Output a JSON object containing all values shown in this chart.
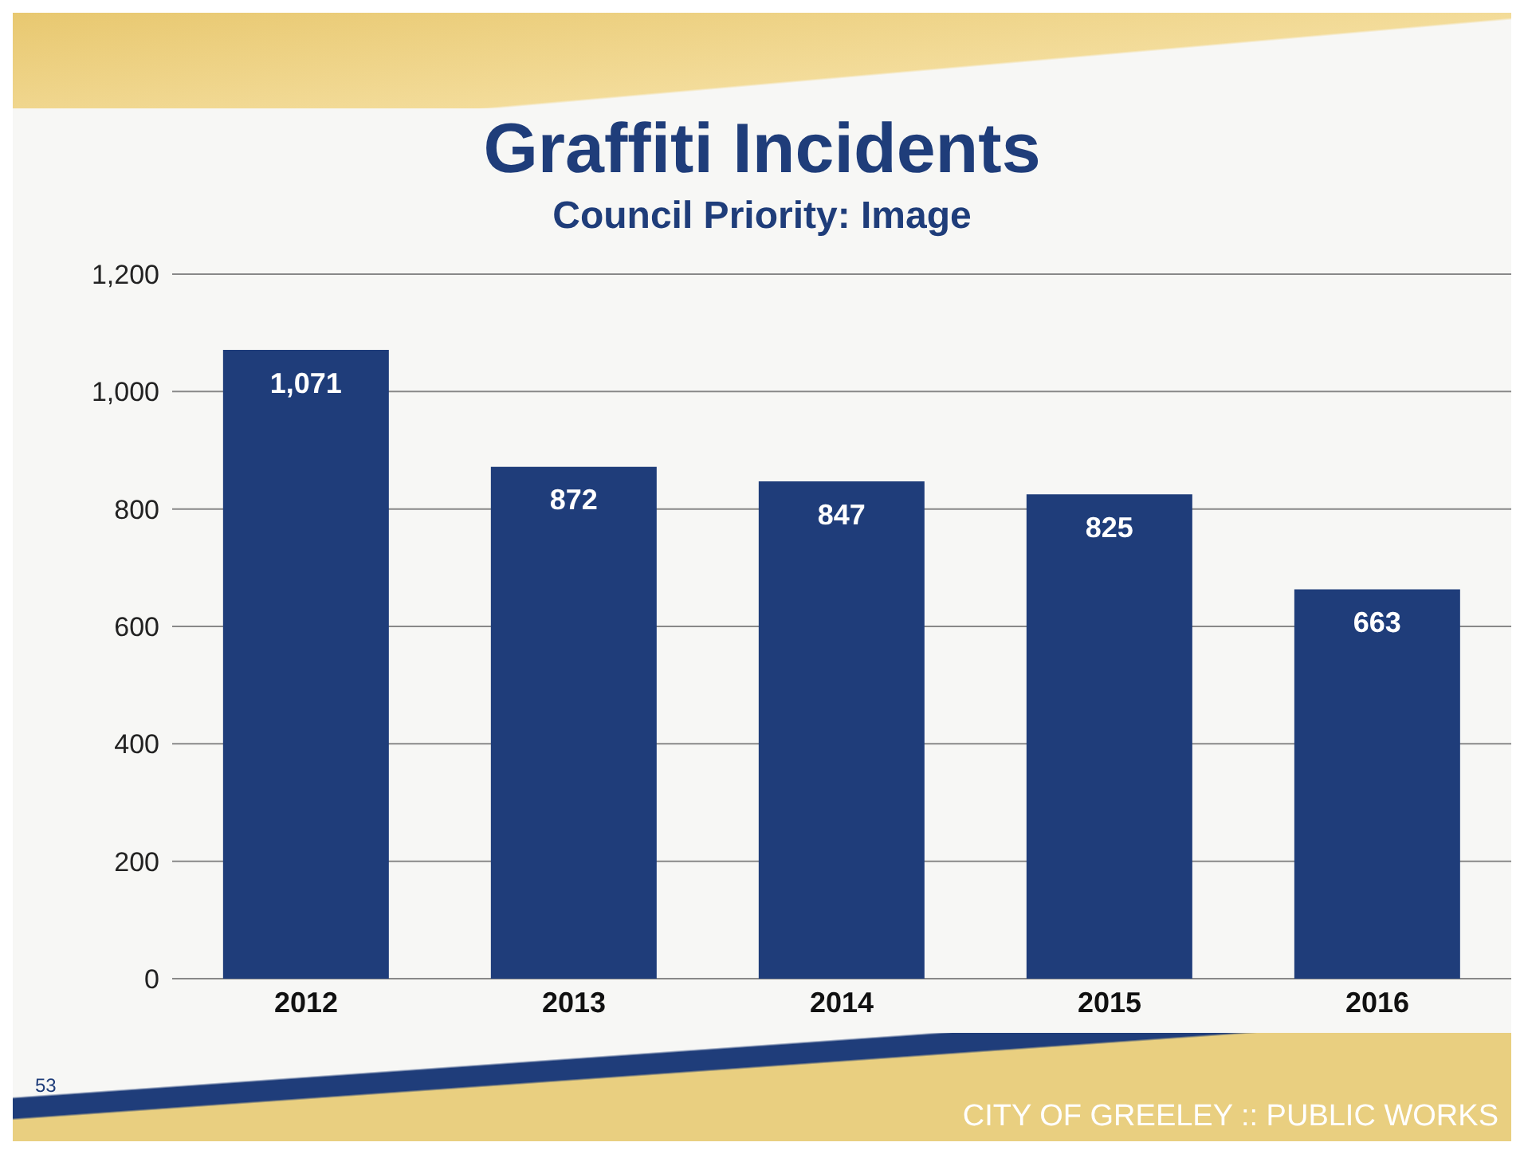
{
  "chart_data": {
    "type": "bar",
    "title": "Graffiti Incidents",
    "subtitle": "Council Priority: Image",
    "categories": [
      "2012",
      "2013",
      "2014",
      "2015",
      "2016"
    ],
    "values": [
      1071,
      872,
      847,
      825,
      663
    ],
    "color": "#1f3d7a",
    "ylim": [
      0,
      1200
    ],
    "yticks": [
      {
        "value": 0,
        "label": "0"
      },
      {
        "value": 200,
        "label": "200"
      },
      {
        "value": 400,
        "label": "400"
      },
      {
        "value": 600,
        "label": "600"
      },
      {
        "value": 800,
        "label": "800"
      },
      {
        "value": 1000,
        "label": "1,000"
      },
      {
        "value": 1200,
        "label": "1,200"
      }
    ],
    "value_labels": [
      "1,071",
      "872",
      "847",
      "825",
      "663"
    ],
    "grid": "y",
    "annotations": [
      "53",
      "CITY OF GREELEY :: PUBLIC WORKS"
    ]
  }
}
